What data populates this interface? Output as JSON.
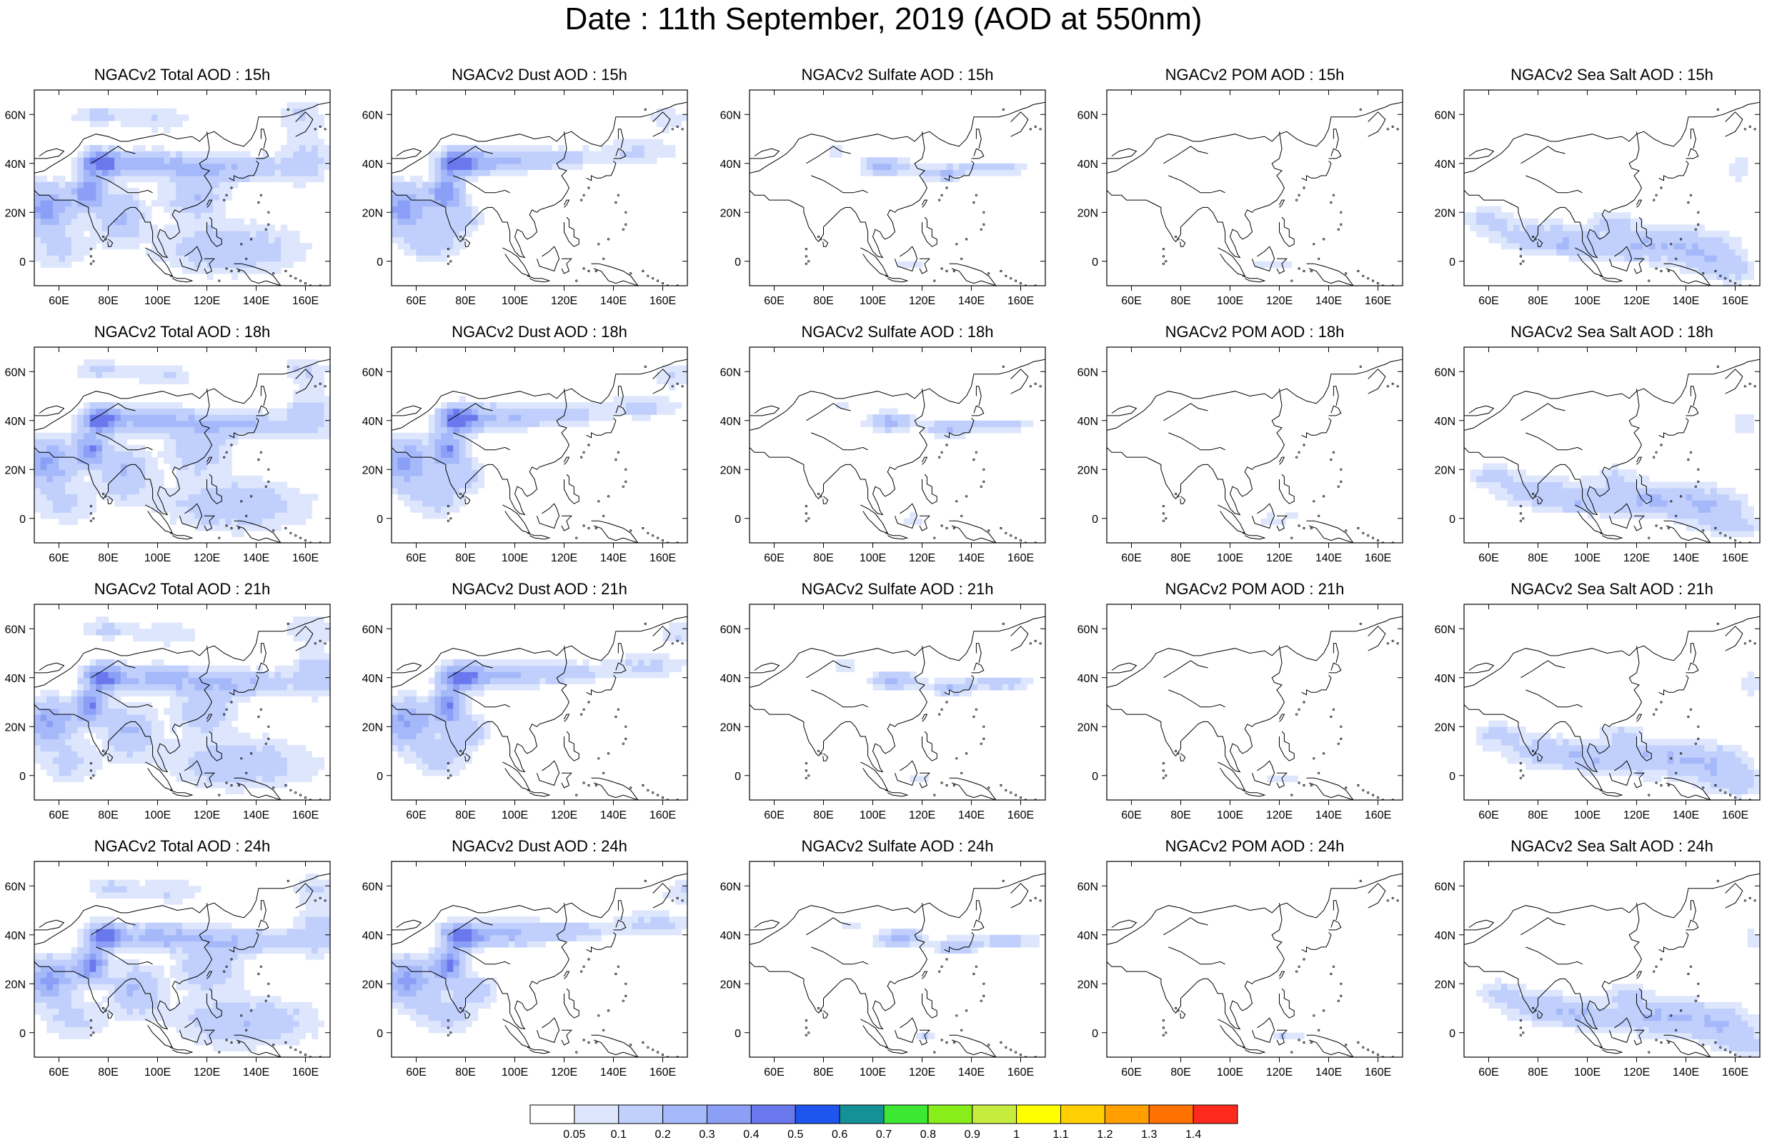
{
  "title": "Date : 11th September, 2019 (AOD at 550nm)",
  "x_ticks": [
    "60E",
    "80E",
    "100E",
    "120E",
    "140E",
    "160E"
  ],
  "y_ticks": [
    "60N",
    "40N",
    "20N",
    "0"
  ],
  "panels": [
    {
      "title": "NGACv2 Total AOD : 15h",
      "species": "total",
      "hour": 15
    },
    {
      "title": "NGACv2 Dust AOD : 15h",
      "species": "dust",
      "hour": 15
    },
    {
      "title": "NGACv2 Sulfate AOD : 15h",
      "species": "sulfate",
      "hour": 15
    },
    {
      "title": "NGACv2 POM AOD : 15h",
      "species": "pom",
      "hour": 15
    },
    {
      "title": "NGACv2 Sea Salt AOD : 15h",
      "species": "seasalt",
      "hour": 15
    },
    {
      "title": "NGACv2 Total AOD : 18h",
      "species": "total",
      "hour": 18
    },
    {
      "title": "NGACv2 Dust AOD : 18h",
      "species": "dust",
      "hour": 18
    },
    {
      "title": "NGACv2 Sulfate AOD : 18h",
      "species": "sulfate",
      "hour": 18
    },
    {
      "title": "NGACv2 POM AOD : 18h",
      "species": "pom",
      "hour": 18
    },
    {
      "title": "NGACv2 Sea Salt AOD : 18h",
      "species": "seasalt",
      "hour": 18
    },
    {
      "title": "NGACv2 Total AOD : 21h",
      "species": "total",
      "hour": 21
    },
    {
      "title": "NGACv2 Dust AOD : 21h",
      "species": "dust",
      "hour": 21
    },
    {
      "title": "NGACv2 Sulfate AOD : 21h",
      "species": "sulfate",
      "hour": 21
    },
    {
      "title": "NGACv2 POM AOD : 21h",
      "species": "pom",
      "hour": 21
    },
    {
      "title": "NGACv2 Sea Salt AOD : 21h",
      "species": "seasalt",
      "hour": 21
    },
    {
      "title": "NGACv2 Total AOD : 24h",
      "species": "total",
      "hour": 24
    },
    {
      "title": "NGACv2 Dust AOD : 24h",
      "species": "dust",
      "hour": 24
    },
    {
      "title": "NGACv2 Sulfate AOD : 24h",
      "species": "sulfate",
      "hour": 24
    },
    {
      "title": "NGACv2 POM AOD : 24h",
      "species": "pom",
      "hour": 24
    },
    {
      "title": "NGACv2 Sea Salt  AOD : 24h",
      "species": "seasalt",
      "hour": 24
    }
  ],
  "colorbar": {
    "labels": [
      "0.05",
      "0.1",
      "0.2",
      "0.3",
      "0.4",
      "0.5",
      "0.6",
      "0.7",
      "0.8",
      "0.9",
      "1",
      "1.1",
      "1.2",
      "1.3",
      "1.4"
    ],
    "colors": [
      "#ffffff",
      "#dde6fc",
      "#c0cffb",
      "#a5b8fa",
      "#8a9ff5",
      "#6a78ed",
      "#1f55ef",
      "#139196",
      "#3ce834",
      "#87ee19",
      "#c6ed3e",
      "#ffff00",
      "#ffcf01",
      "#ffa000",
      "#ff7100",
      "#ff2a1d"
    ]
  }
}
